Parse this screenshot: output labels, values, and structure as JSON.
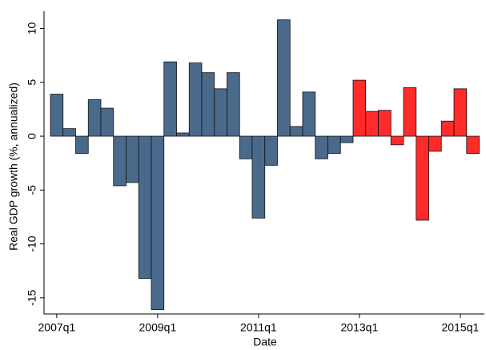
{
  "chart_data": {
    "type": "bar",
    "x_label": "Date",
    "y_label": "Real GDP growth (%, annualized)",
    "categories": [
      "2007q1",
      null,
      null,
      null,
      null,
      null,
      null,
      null,
      "2009q1",
      null,
      null,
      null,
      null,
      null,
      null,
      null,
      "2011q1",
      null,
      null,
      null,
      null,
      null,
      null,
      null,
      "2013q1",
      null,
      null,
      null,
      null,
      null,
      null,
      null,
      "2015q1",
      null
    ],
    "values": [
      3.9,
      0.7,
      -1.6,
      3.4,
      2.6,
      -4.6,
      -4.3,
      -13.2,
      -16.1,
      6.9,
      0.3,
      6.8,
      5.9,
      4.4,
      5.9,
      -2.1,
      -7.6,
      -2.7,
      10.8,
      0.9,
      4.1,
      -2.1,
      -1.6,
      -0.6,
      5.2,
      2.3,
      2.4,
      -0.8,
      4.5,
      -7.8,
      -1.4,
      1.4,
      4.4,
      -1.6
    ],
    "colors": [
      "#4a6a8c",
      "#4a6a8c",
      "#4a6a8c",
      "#4a6a8c",
      "#4a6a8c",
      "#4a6a8c",
      "#4a6a8c",
      "#4a6a8c",
      "#4a6a8c",
      "#4a6a8c",
      "#4a6a8c",
      "#4a6a8c",
      "#4a6a8c",
      "#4a6a8c",
      "#4a6a8c",
      "#4a6a8c",
      "#4a6a8c",
      "#4a6a8c",
      "#4a6a8c",
      "#4a6a8c",
      "#4a6a8c",
      "#4a6a8c",
      "#4a6a8c",
      "#4a6a8c",
      "#ff2a2a",
      "#ff2a2a",
      "#ff2a2a",
      "#ff2a2a",
      "#ff2a2a",
      "#ff2a2a",
      "#ff2a2a",
      "#ff2a2a",
      "#ff2a2a",
      "#ff2a2a"
    ],
    "ylim": [
      -16.5,
      11.6
    ],
    "yticks": [
      -15,
      -10,
      -5,
      0,
      5,
      10
    ]
  }
}
